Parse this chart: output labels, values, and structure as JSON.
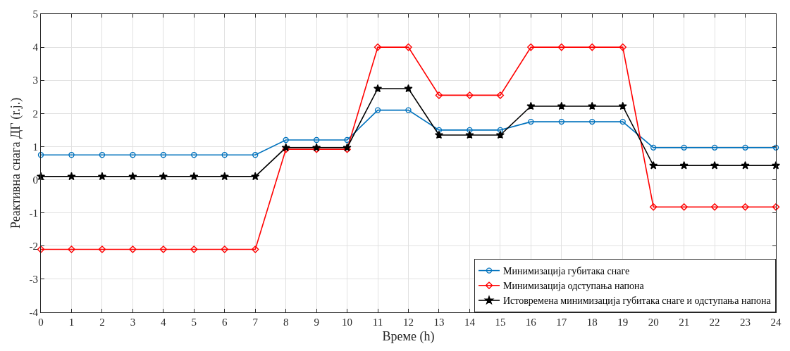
{
  "chart_data": {
    "type": "line",
    "xlabel": "Време (h)",
    "ylabel": "Реактивна снага ДГ (r.j.)",
    "x": [
      0,
      1,
      2,
      3,
      4,
      5,
      6,
      7,
      8,
      9,
      10,
      11,
      12,
      13,
      14,
      15,
      16,
      17,
      18,
      19,
      20,
      21,
      22,
      23,
      24
    ],
    "series": [
      {
        "name": "Минимизација губитака снаге",
        "color": "#0072bd",
        "marker": "circle",
        "values": [
          0.75,
          0.75,
          0.75,
          0.75,
          0.75,
          0.75,
          0.75,
          0.75,
          1.2,
          1.2,
          1.2,
          2.1,
          2.1,
          1.5,
          1.5,
          1.5,
          1.75,
          1.75,
          1.75,
          1.75,
          0.97,
          0.97,
          0.97,
          0.97,
          0.97
        ]
      },
      {
        "name": "Минимизација одступања напона",
        "color": "#ff0000",
        "marker": "diamond",
        "values": [
          -2.1,
          -2.1,
          -2.1,
          -2.1,
          -2.1,
          -2.1,
          -2.1,
          -2.1,
          0.92,
          0.92,
          0.92,
          4,
          4,
          2.55,
          2.55,
          2.55,
          4,
          4,
          4,
          4,
          -0.82,
          -0.82,
          -0.82,
          -0.82,
          -0.82
        ]
      },
      {
        "name": "Истовремена минимизација губитака снаге и одступања напона",
        "color": "#000000",
        "marker": "star",
        "values": [
          0.1,
          0.1,
          0.1,
          0.1,
          0.1,
          0.1,
          0.1,
          0.1,
          0.97,
          0.97,
          0.97,
          2.75,
          2.75,
          1.35,
          1.35,
          1.35,
          2.22,
          2.22,
          2.22,
          2.22,
          0.43,
          0.43,
          0.43,
          0.43,
          0.43
        ]
      }
    ],
    "xlim": [
      0,
      24
    ],
    "xticks": [
      0,
      1,
      2,
      3,
      4,
      5,
      6,
      7,
      8,
      9,
      10,
      11,
      12,
      13,
      14,
      15,
      16,
      17,
      18,
      19,
      20,
      21,
      22,
      23,
      24
    ],
    "ylim": [
      -4,
      5
    ],
    "yticks": [
      -4,
      -3,
      -2,
      -1,
      0,
      1,
      2,
      3,
      4,
      5
    ],
    "grid": true,
    "legend": "bottom right",
    "line_style": "solid"
  }
}
